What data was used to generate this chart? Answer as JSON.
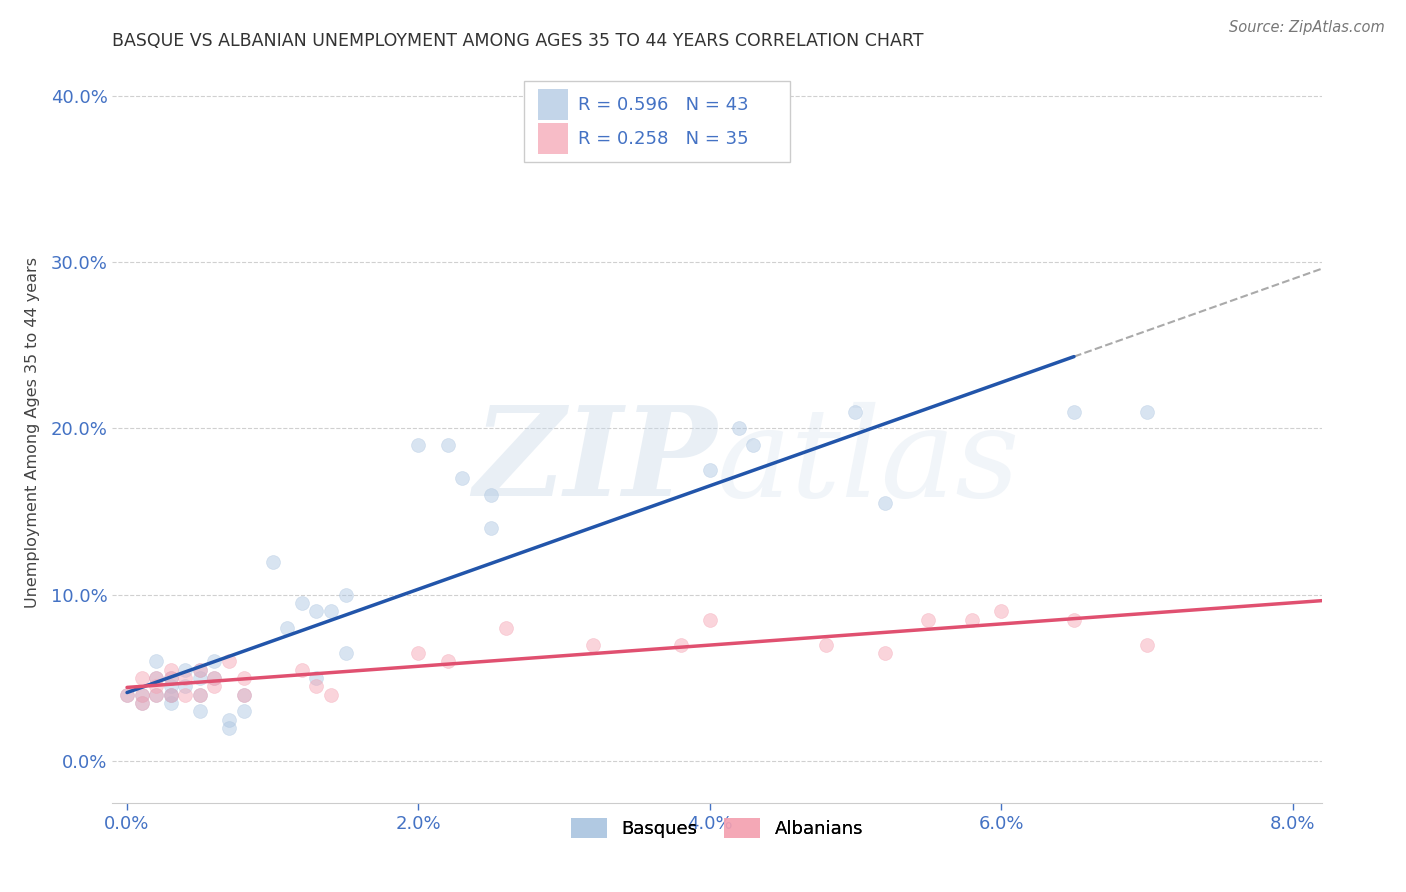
{
  "title": "BASQUE VS ALBANIAN UNEMPLOYMENT AMONG AGES 35 TO 44 YEARS CORRELATION CHART",
  "source": "Source: ZipAtlas.com",
  "ylabel": "Unemployment Among Ages 35 to 44 years",
  "xlabel_basques": "Basques",
  "xlabel_albanians": "Albanians",
  "watermark_zip": "ZIP",
  "watermark_atlas": "atlas",
  "legend_basque_R": "R = 0.596",
  "legend_basque_N": "N = 43",
  "legend_albanian_R": "R = 0.258",
  "legend_albanian_N": "N = 35",
  "xlim": [
    -0.001,
    0.082
  ],
  "ylim": [
    -0.025,
    0.42
  ],
  "xticks": [
    0.0,
    0.02,
    0.04,
    0.06,
    0.08
  ],
  "yticks": [
    0.0,
    0.1,
    0.2,
    0.3,
    0.4
  ],
  "xticklabels": [
    "0.0%",
    "2.0%",
    "4.0%",
    "6.0%",
    "8.0%"
  ],
  "yticklabels": [
    "0.0%",
    "10.0%",
    "20.0%",
    "30.0%",
    "40.0%"
  ],
  "background_color": "#ffffff",
  "grid_color": "#d0d0d0",
  "title_color": "#333333",
  "tick_color": "#4472c4",
  "blue_scatter_color": "#aac4e0",
  "pink_scatter_color": "#f4a0b0",
  "blue_line_color": "#2255aa",
  "pink_line_color": "#e05070",
  "dash_line_color": "#aaaaaa",
  "basque_x": [
    0.0,
    0.001,
    0.001,
    0.002,
    0.002,
    0.002,
    0.003,
    0.003,
    0.003,
    0.003,
    0.003,
    0.004,
    0.004,
    0.005,
    0.005,
    0.005,
    0.005,
    0.006,
    0.006,
    0.007,
    0.007,
    0.008,
    0.008,
    0.01,
    0.011,
    0.012,
    0.013,
    0.013,
    0.014,
    0.015,
    0.015,
    0.02,
    0.022,
    0.023,
    0.025,
    0.025,
    0.04,
    0.042,
    0.043,
    0.05,
    0.052,
    0.065,
    0.07
  ],
  "basque_y": [
    0.04,
    0.04,
    0.035,
    0.04,
    0.05,
    0.06,
    0.035,
    0.04,
    0.05,
    0.04,
    0.045,
    0.045,
    0.055,
    0.04,
    0.05,
    0.055,
    0.03,
    0.05,
    0.06,
    0.02,
    0.025,
    0.04,
    0.03,
    0.12,
    0.08,
    0.095,
    0.09,
    0.05,
    0.09,
    0.1,
    0.065,
    0.19,
    0.19,
    0.17,
    0.16,
    0.14,
    0.175,
    0.2,
    0.19,
    0.21,
    0.155,
    0.21,
    0.21
  ],
  "albanian_x": [
    0.0,
    0.001,
    0.001,
    0.001,
    0.002,
    0.002,
    0.002,
    0.003,
    0.003,
    0.003,
    0.004,
    0.004,
    0.005,
    0.005,
    0.006,
    0.006,
    0.007,
    0.008,
    0.008,
    0.012,
    0.013,
    0.014,
    0.02,
    0.022,
    0.026,
    0.032,
    0.038,
    0.04,
    0.048,
    0.052,
    0.055,
    0.058,
    0.06,
    0.065,
    0.07
  ],
  "albanian_y": [
    0.04,
    0.04,
    0.05,
    0.035,
    0.04,
    0.045,
    0.05,
    0.04,
    0.05,
    0.055,
    0.04,
    0.05,
    0.04,
    0.055,
    0.045,
    0.05,
    0.06,
    0.04,
    0.05,
    0.055,
    0.045,
    0.04,
    0.065,
    0.06,
    0.08,
    0.07,
    0.07,
    0.085,
    0.07,
    0.065,
    0.085,
    0.085,
    0.09,
    0.085,
    0.07
  ],
  "marker_size": 100,
  "marker_alpha": 0.45,
  "line_width": 2.5
}
